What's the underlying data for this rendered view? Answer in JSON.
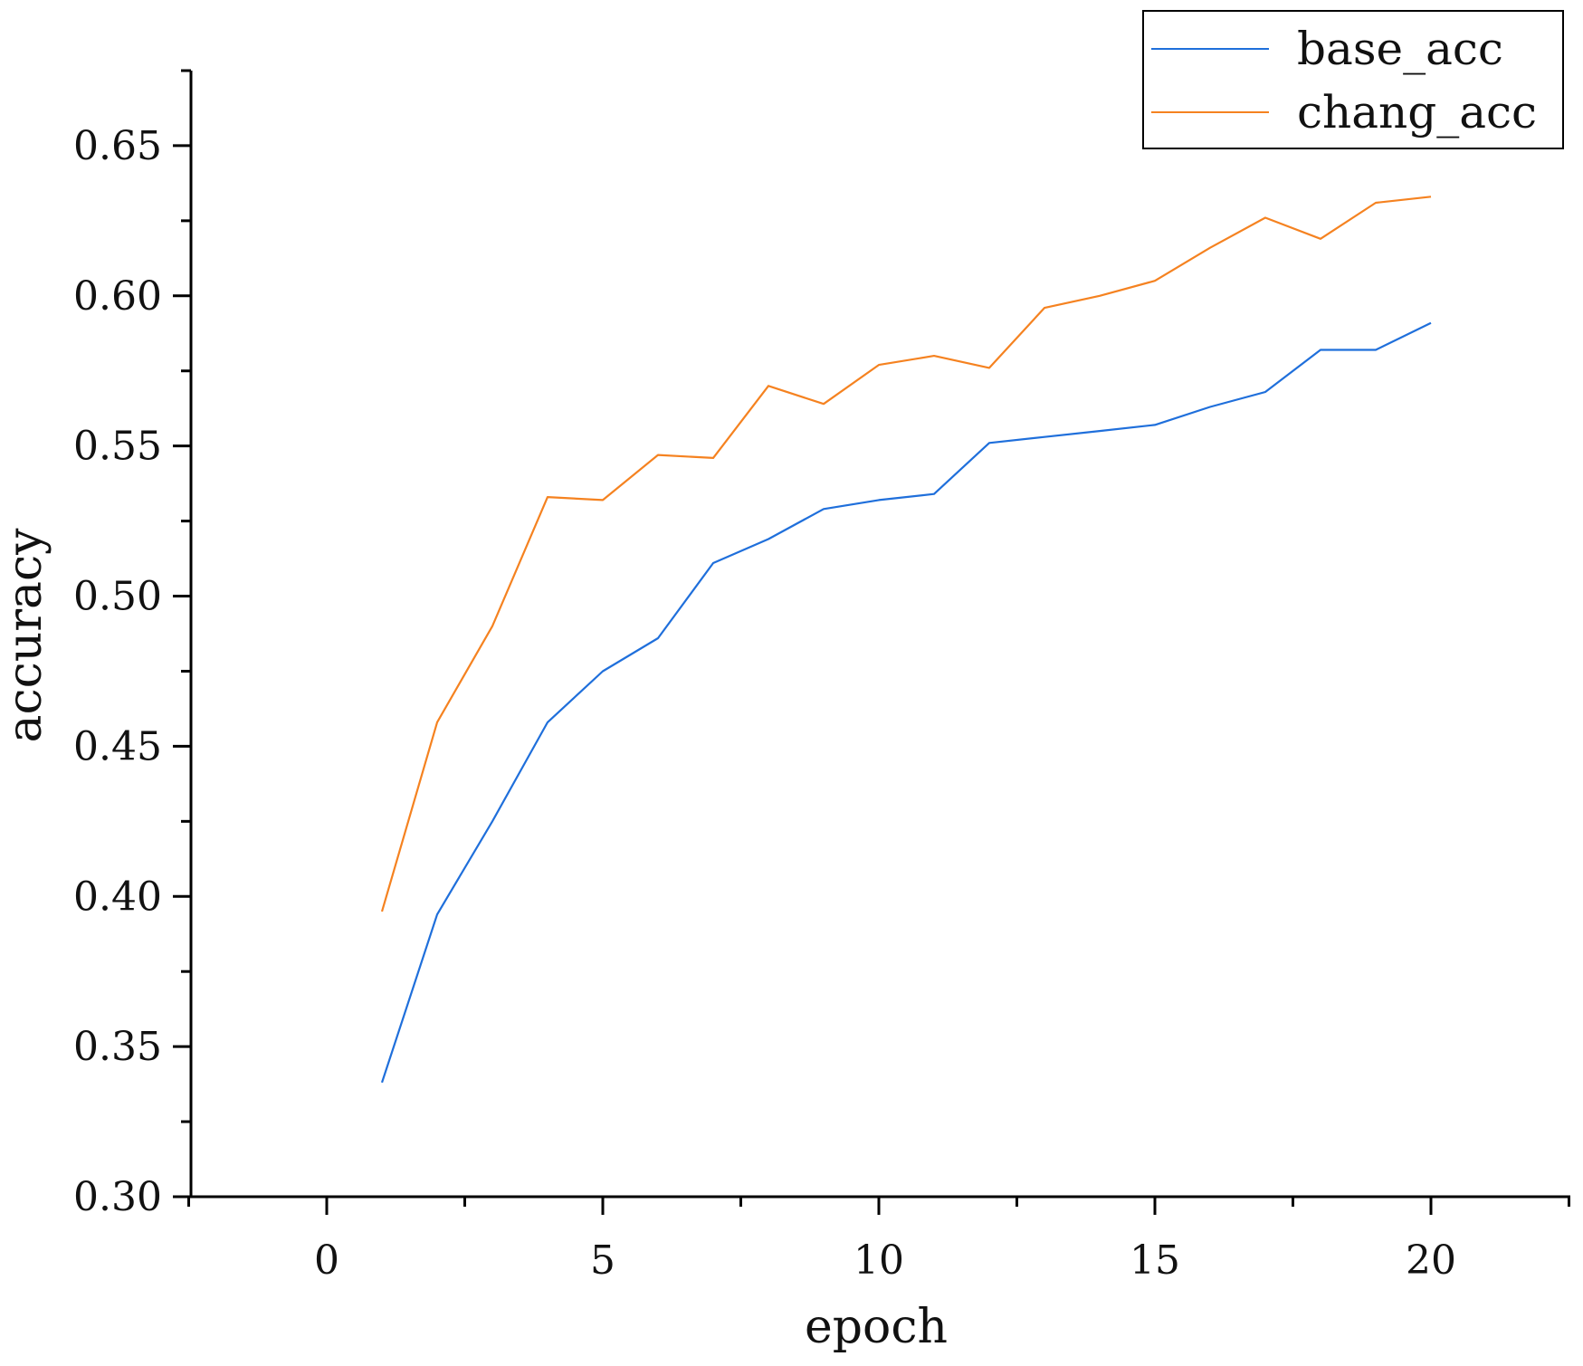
{
  "chart_data": {
    "type": "line",
    "xlabel": "epoch",
    "ylabel": "accuracy",
    "xlim": [
      -2.5,
      22.5
    ],
    "ylim": [
      0.3,
      0.675
    ],
    "x_ticks": [
      0,
      5,
      10,
      15,
      20
    ],
    "x_tick_labels": [
      "0",
      "5",
      "10",
      "15",
      "20"
    ],
    "y_ticks": [
      0.3,
      0.35,
      0.4,
      0.45,
      0.5,
      0.55,
      0.6,
      0.65
    ],
    "y_tick_labels": [
      "0.30",
      "0.35",
      "0.40",
      "0.45",
      "0.50",
      "0.55",
      "0.60",
      "0.65"
    ],
    "x_minor_step": 2.5,
    "y_minor_step": 0.025,
    "grid": false,
    "legend_position": "top-right",
    "x": [
      1,
      2,
      3,
      4,
      5,
      6,
      7,
      8,
      9,
      10,
      11,
      12,
      13,
      14,
      15,
      16,
      17,
      18,
      19,
      20
    ],
    "series": [
      {
        "name": "base_acc",
        "color": "#1f6fdb",
        "values": [
          0.338,
          0.394,
          0.425,
          0.458,
          0.475,
          0.486,
          0.511,
          0.519,
          0.529,
          0.532,
          0.534,
          0.551,
          0.553,
          0.555,
          0.557,
          0.563,
          0.568,
          0.582,
          0.582,
          0.591
        ]
      },
      {
        "name": "chang_acc",
        "color": "#f58220",
        "values": [
          0.395,
          0.458,
          0.49,
          0.533,
          0.532,
          0.547,
          0.546,
          0.57,
          0.564,
          0.577,
          0.58,
          0.576,
          0.596,
          0.6,
          0.605,
          0.616,
          0.626,
          0.619,
          0.631,
          0.633
        ]
      }
    ]
  }
}
